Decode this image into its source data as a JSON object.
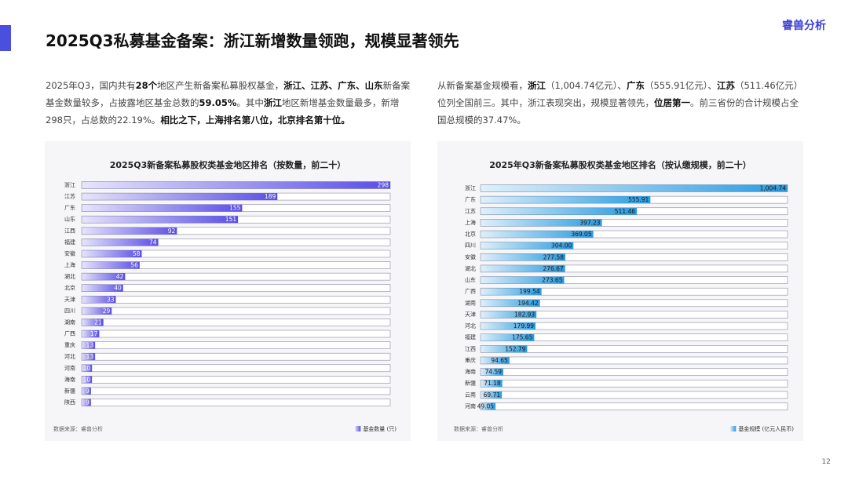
{
  "header": {
    "title": "2025Q3私募基金备案：浙江新增数量领跑，规模显著领先",
    "logo": "睿兽分析"
  },
  "paragraphs": [
    {
      "runs": [
        {
          "text": "2025年Q3，国内共有",
          "bold": false
        },
        {
          "text": "28个",
          "bold": true
        },
        {
          "text": "地区产生新备案私募股权基金，",
          "bold": false
        },
        {
          "text": "浙江、江苏、广东、山东",
          "bold": true
        },
        {
          "text": "新备案基金数量较多，占披露地区基金总数的",
          "bold": false
        },
        {
          "text": "59.05%",
          "bold": true
        },
        {
          "text": "。其中",
          "bold": false
        },
        {
          "text": "浙江",
          "bold": true
        },
        {
          "text": "地区新增基金数量最多，新增298只，占总数的22.19%。",
          "bold": false
        },
        {
          "text": "相比之下，上海排名第八位，北京排名第十位。",
          "bold": true
        }
      ]
    },
    {
      "runs": [
        {
          "text": "从新备案基金规模看，",
          "bold": false
        },
        {
          "text": "浙江",
          "bold": true
        },
        {
          "text": "（1,004.74亿元）、",
          "bold": false
        },
        {
          "text": "广东",
          "bold": true
        },
        {
          "text": "（555.91亿元）、",
          "bold": false
        },
        {
          "text": "江苏",
          "bold": true
        },
        {
          "text": "（511.46亿元）位列全国前三。其中，浙江表现突出，规模显著领先，",
          "bold": false
        },
        {
          "text": "位居第一",
          "bold": true
        },
        {
          "text": "。前三省份的合计规模占全国总规模的37.47%。",
          "bold": false
        }
      ]
    }
  ],
  "chart_data": [
    {
      "type": "bar",
      "orientation": "horizontal",
      "title": "2025Q3新备案私募股权类基金地区排名（按数量，前二十）",
      "categories": [
        "浙江",
        "江苏",
        "广东",
        "山东",
        "江西",
        "福建",
        "安徽",
        "上海",
        "湖北",
        "北京",
        "天津",
        "四川",
        "湖南",
        "广西",
        "重庆",
        "河北",
        "河南",
        "海南",
        "新疆",
        "陕西"
      ],
      "series": [
        {
          "name": "基金数量 (只)",
          "color": "#5a4ee6",
          "values": [
            298,
            189,
            155,
            151,
            92,
            74,
            58,
            56,
            42,
            40,
            33,
            29,
            21,
            17,
            13,
            13,
            10,
            10,
            9,
            9
          ]
        }
      ],
      "xlim": [
        0,
        298
      ],
      "source": "数据来源：睿兽分析",
      "legend": "bottom-right"
    },
    {
      "type": "bar",
      "orientation": "horizontal",
      "title": "2025年Q3新备案私募股权类基金地区排名（按认缴规模，前二十）",
      "categories": [
        "浙江",
        "广东",
        "江苏",
        "上海",
        "北京",
        "四川",
        "安徽",
        "湖北",
        "山东",
        "广西",
        "湖南",
        "天津",
        "河北",
        "福建",
        "江西",
        "重庆",
        "海南",
        "新疆",
        "云南",
        "河南"
      ],
      "series": [
        {
          "name": "基金规模 (亿元人民币)",
          "color": "#2a9be0",
          "values": [
            1004.74,
            555.91,
            511.46,
            397.23,
            369.05,
            304.0,
            277.58,
            276.67,
            273.65,
            199.54,
            194.42,
            182.93,
            179.99,
            175.65,
            152.79,
            94.65,
            74.59,
            71.18,
            69.71,
            49.05
          ],
          "value_labels": [
            "1,004.74",
            "555.91",
            "511.46",
            "397.23",
            "369.05",
            "304.00",
            "277.58",
            "276.67",
            "273.65",
            "199.54",
            "194.42",
            "182.93",
            "179.99",
            "175.65",
            "152.79",
            "94.65",
            "74.59",
            "71.18",
            "69.71",
            "49.05"
          ]
        }
      ],
      "xlim": [
        0,
        1004.74
      ],
      "source": "数据来源：睿兽分析",
      "legend": "bottom-right"
    }
  ],
  "page_number": "12"
}
